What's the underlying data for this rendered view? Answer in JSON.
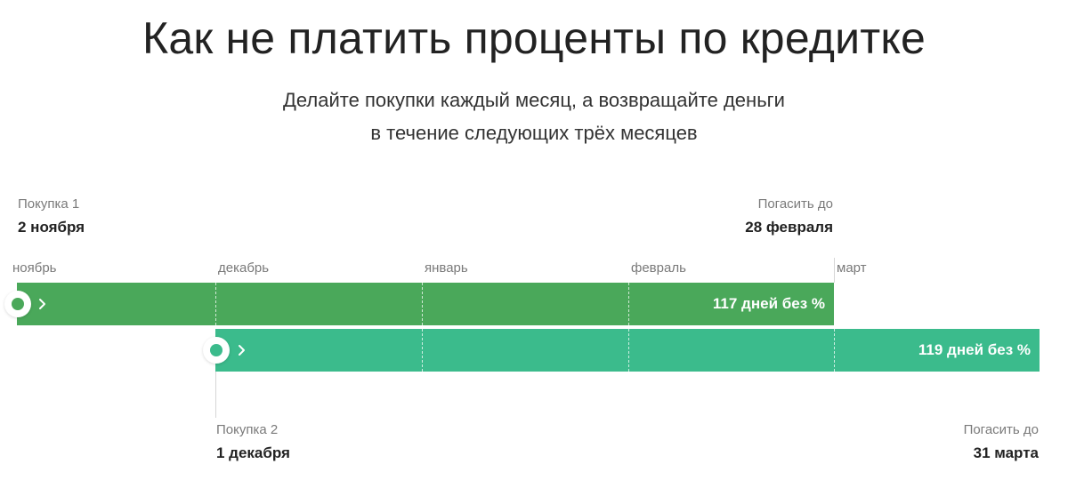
{
  "header": {
    "title": "Как не платить проценты по кредитке",
    "subtitle_line1": "Делайте покупки каждый месяц, а возвращайте деньги",
    "subtitle_line2": "в течение следующих трёх месяцев"
  },
  "months": [
    "ноябрь",
    "декабрь",
    "январь",
    "февраль",
    "март"
  ],
  "purchase1": {
    "label": "Покупка 1",
    "date": "2 ноября",
    "pay_label": "Погасить до",
    "pay_date": "28 февраля",
    "bar_text": "117 дней без %",
    "color": "#4aa85a"
  },
  "purchase2": {
    "label": "Покупка 2",
    "date": "1 декабря",
    "pay_label": "Погасить до",
    "pay_date": "31 марта",
    "bar_text": "119 дней без %",
    "color": "#3bbb8c"
  },
  "icons": [
    "start-dot-icon",
    "chevron-right-icon"
  ]
}
